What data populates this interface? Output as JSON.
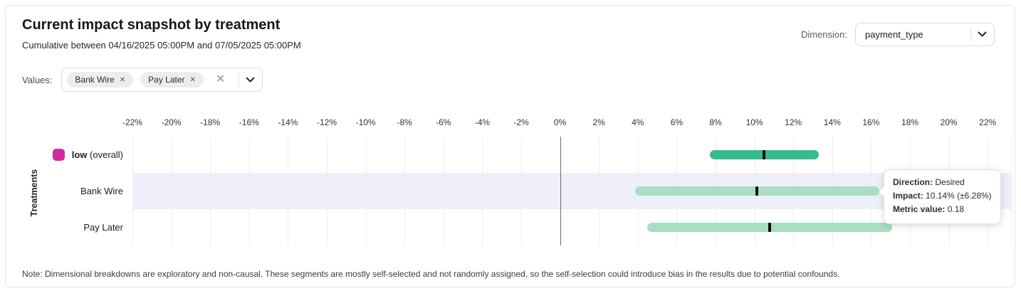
{
  "header": {
    "title": "Current impact snapshot by treatment",
    "subtitle": "Cumulative between 04/16/2025 05:00PM and 07/05/2025 05:00PM",
    "dimension_label": "Dimension:",
    "dimension_value": "payment_type"
  },
  "filters": {
    "values_label": "Values:",
    "chips": [
      {
        "label": "Bank Wire"
      },
      {
        "label": "Pay Later"
      }
    ],
    "remove_icon": "✕",
    "clear_icon": "✕"
  },
  "chart_data": {
    "type": "interval_bar",
    "title": "Current impact snapshot by treatment",
    "ylabel": "Treatments",
    "axis": {
      "min": -22,
      "max": 22,
      "step": 2,
      "unit": "%"
    },
    "grid": true,
    "zero_line_color": "#6e6e75",
    "gridline_color": "#ededf0",
    "highlight_band_color": "#eeeffb",
    "rows": [
      {
        "label": "low",
        "label_suffix": " (overall)",
        "label_bold": true,
        "swatch_color": "#d02b9b",
        "bar_color": "#36bb8d",
        "ci_low": 7.7,
        "ci_high": 13.3,
        "center": 10.5,
        "highlighted": false
      },
      {
        "label": "Bank Wire",
        "label_bold": false,
        "swatch_color": null,
        "bar_color": "#a9dec3",
        "ci_low": 3.86,
        "ci_high": 16.42,
        "center": 10.14,
        "highlighted": true
      },
      {
        "label": "Pay Later",
        "label_bold": false,
        "swatch_color": null,
        "bar_color": "#a9dec3",
        "ci_low": 4.5,
        "ci_high": 17.1,
        "center": 10.8,
        "highlighted": false
      }
    ]
  },
  "tooltip": {
    "direction_label": "Direction:",
    "direction_value": "Desired",
    "impact_label": "Impact:",
    "impact_value": "10.14% (±6.28%)",
    "metric_label": "Metric value:",
    "metric_value": "0.18"
  },
  "note": "Note: Dimensional breakdowns are exploratory and non-causal. These segments are mostly self-selected and not randomly assigned, so the self-selection could introduce bias in the results due to potential confounds."
}
